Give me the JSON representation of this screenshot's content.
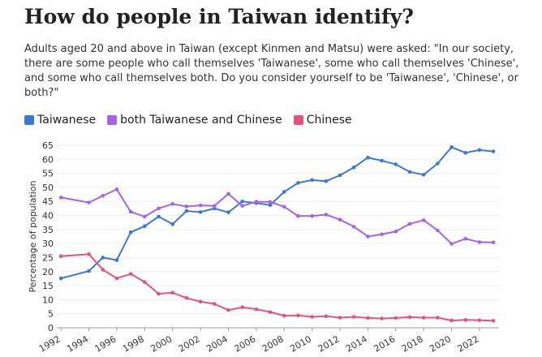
{
  "chart_data": {
    "type": "line",
    "title": "How do people in Taiwan identify?",
    "subtitle": "Adults aged 20 and above in Taiwan (except Kinmen and Matsu) were asked: \"In our society, there are some people who call themselves 'Taiwanese', some who call themselves 'Chinese', and some who call themselves both. Do you consider yourself to be 'Taiwanese', 'Chinese', or both?\"",
    "y_label": "Percentage of population",
    "x": [
      1992,
      1994,
      1995,
      1996,
      1997,
      1998,
      1999,
      2000,
      2001,
      2002,
      2003,
      2004,
      2005,
      2006,
      2007,
      2008,
      2009,
      2010,
      2011,
      2012,
      2013,
      2014,
      2015,
      2016,
      2017,
      2018,
      2019,
      2020,
      2021,
      2022,
      2023
    ],
    "series": [
      {
        "name": "Taiwanese",
        "color": "#3a78d8",
        "values": [
          17.6,
          20.2,
          25.0,
          24.1,
          34.0,
          36.2,
          39.6,
          36.9,
          41.6,
          41.2,
          42.5,
          41.1,
          45.0,
          44.4,
          43.7,
          48.4,
          51.6,
          52.6,
          52.2,
          54.3,
          57.1,
          60.6,
          59.5,
          58.2,
          55.5,
          54.5,
          58.5,
          64.3,
          62.3,
          63.3,
          62.8
        ]
      },
      {
        "name": "both Taiwanese and Chinese",
        "color": "#a463e8",
        "values": [
          46.4,
          44.6,
          47.0,
          49.3,
          41.3,
          39.6,
          42.5,
          44.1,
          43.2,
          43.6,
          43.4,
          47.7,
          43.4,
          44.9,
          44.8,
          43.1,
          39.8,
          39.8,
          40.3,
          38.5,
          36.0,
          32.5,
          33.3,
          34.3,
          37.0,
          38.3,
          34.7,
          29.9,
          31.7,
          30.5,
          30.4
        ]
      },
      {
        "name": "Chinese",
        "color": "#e4537a",
        "values": [
          25.5,
          26.2,
          20.7,
          17.6,
          19.2,
          16.3,
          12.1,
          12.5,
          10.6,
          9.3,
          8.5,
          6.3,
          7.3,
          6.6,
          5.6,
          4.3,
          4.4,
          3.9,
          4.1,
          3.6,
          3.9,
          3.5,
          3.3,
          3.5,
          3.8,
          3.6,
          3.6,
          2.6,
          2.8,
          2.7,
          2.5
        ]
      }
    ],
    "xlim": [
      1991.7,
      2023.4
    ],
    "xticks": [
      1992,
      1994,
      1996,
      1998,
      2000,
      2002,
      2004,
      2006,
      2008,
      2010,
      2012,
      2014,
      2016,
      2018,
      2020,
      2022
    ],
    "ylim": [
      0,
      65
    ],
    "yticks": [
      0,
      5,
      10,
      15,
      20,
      25,
      30,
      35,
      40,
      45,
      50,
      55,
      60,
      65
    ],
    "grid": true
  }
}
